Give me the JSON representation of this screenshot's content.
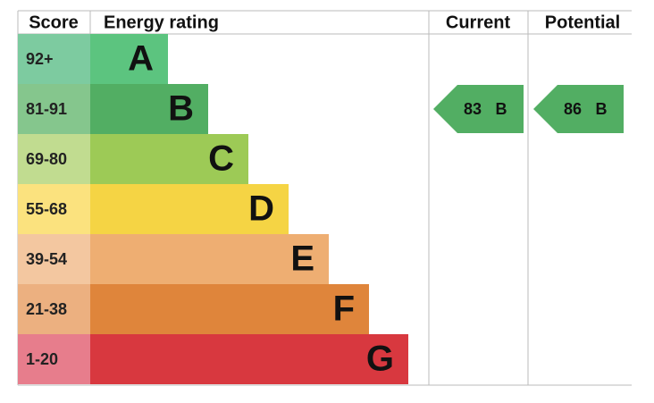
{
  "header": {
    "score": "Score",
    "rating": "Energy rating",
    "current": "Current",
    "potential": "Potential"
  },
  "rows": [
    {
      "score": "92+",
      "letter": "A"
    },
    {
      "score": "81-91",
      "letter": "B"
    },
    {
      "score": "69-80",
      "letter": "C"
    },
    {
      "score": "55-68",
      "letter": "D"
    },
    {
      "score": "39-54",
      "letter": "E"
    },
    {
      "score": "21-38",
      "letter": "F"
    },
    {
      "score": "1-20",
      "letter": "G"
    }
  ],
  "current": {
    "value": 83,
    "band": "B"
  },
  "potential": {
    "value": 86,
    "band": "B"
  }
}
